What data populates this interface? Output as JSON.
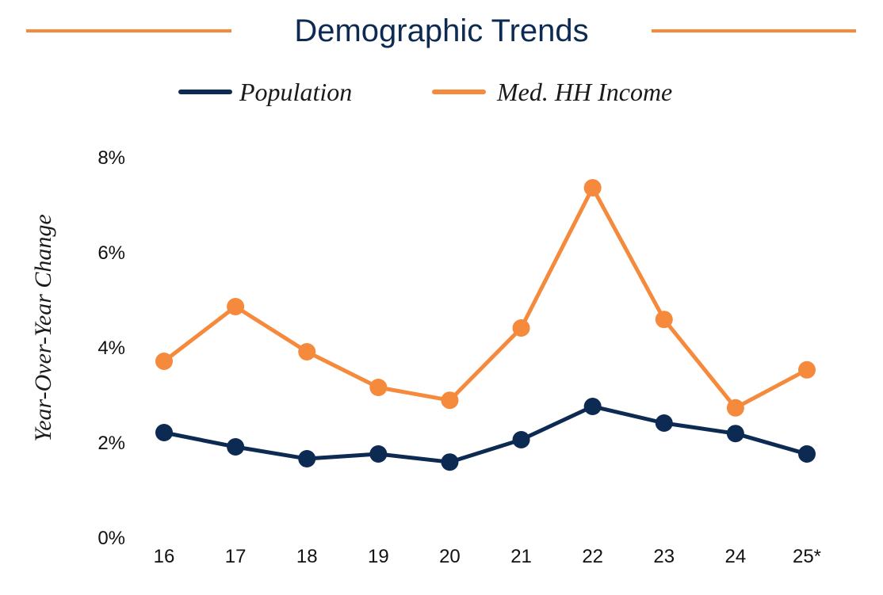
{
  "chart_data": {
    "type": "line",
    "title": "Demographic Trends",
    "ylabel": "Year-Over-Year Change",
    "xlabel": "",
    "categories": [
      "16",
      "17",
      "18",
      "19",
      "20",
      "21",
      "22",
      "23",
      "24",
      "25*"
    ],
    "ylim": [
      0,
      8
    ],
    "yticks": [
      "0%",
      "2%",
      "4%",
      "6%",
      "8%"
    ],
    "ytick_values": [
      0,
      2,
      4,
      6,
      8
    ],
    "grid": false,
    "legend_position": "top",
    "series": [
      {
        "name": "Population",
        "color": "#0d2b52",
        "values": [
          2.2,
          1.9,
          1.65,
          1.75,
          1.58,
          2.05,
          2.75,
          2.4,
          2.18,
          1.75
        ]
      },
      {
        "name": "Med. HH Income",
        "color": "#f58a3c",
        "values": [
          3.7,
          4.85,
          3.9,
          3.15,
          2.88,
          4.4,
          7.35,
          4.58,
          2.72,
          3.52
        ]
      }
    ]
  }
}
